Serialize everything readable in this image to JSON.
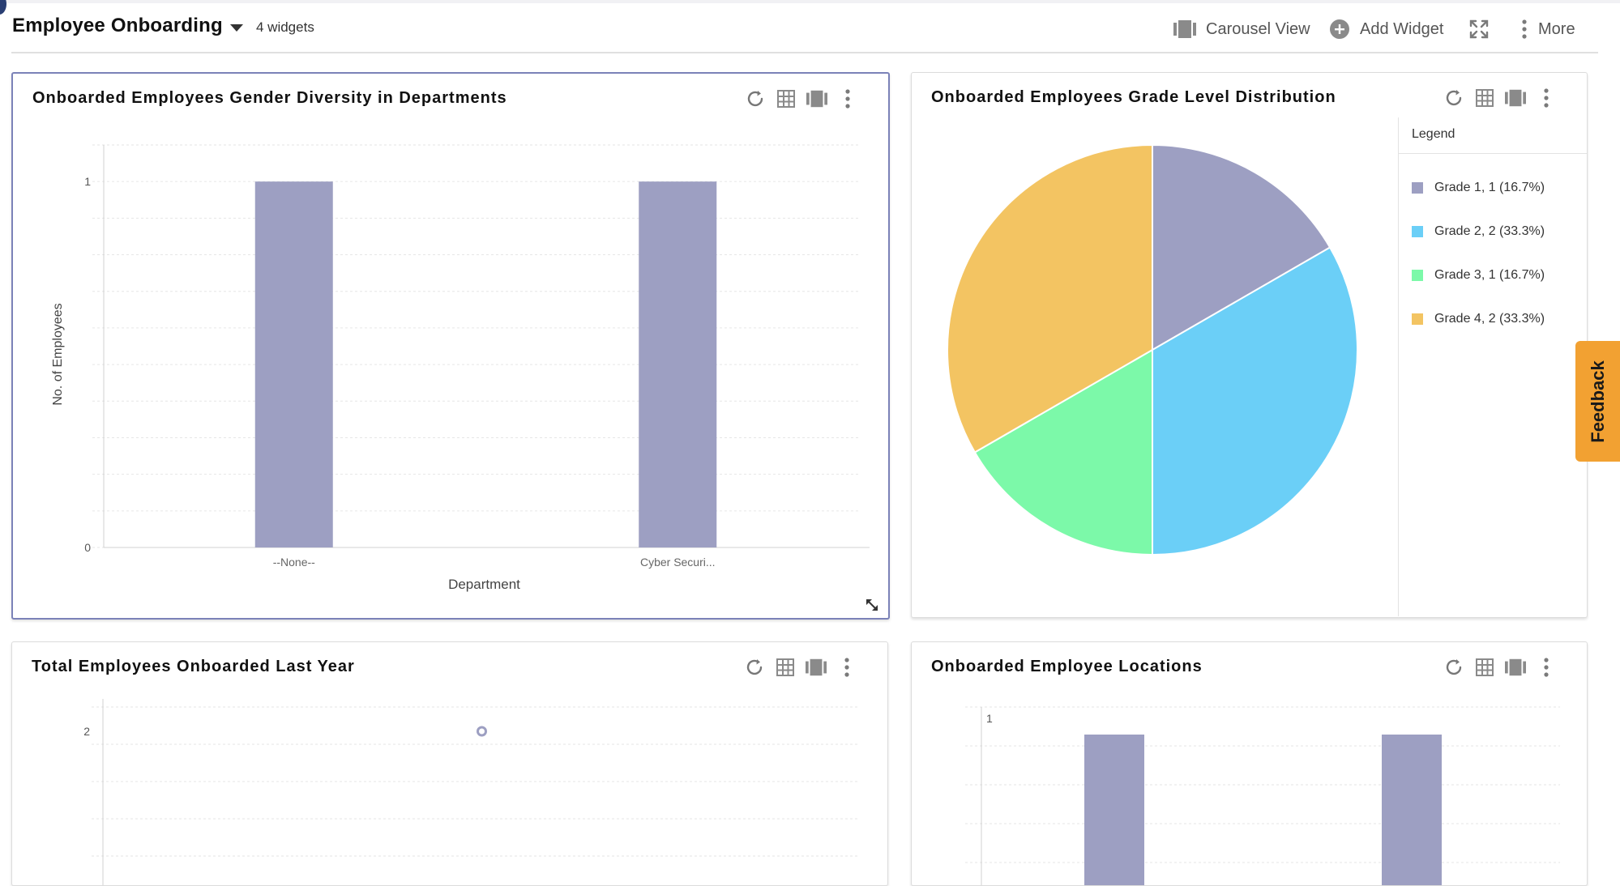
{
  "dashboard": {
    "title": "Employee Onboarding",
    "widget_count": "4 widgets",
    "actions": {
      "carousel_label": "Carousel View",
      "add_widget_label": "Add Widget",
      "more_label": "More"
    }
  },
  "colors": {
    "bar": "#9d9fc2",
    "grade1": "#9d9fc2",
    "grade2": "#6bcff7",
    "grade3": "#7cf9a9",
    "grade4": "#f3c462",
    "feedback": "#f2a132",
    "selected_border": "#7b82b8"
  },
  "widgets": {
    "gender": {
      "title": "Onboarded Employees Gender Diversity in Departments"
    },
    "grade": {
      "title": "Onboarded Employees Grade Level Distribution",
      "legend_title": "Legend"
    },
    "total": {
      "title": "Total Employees Onboarded Last Year"
    },
    "locations": {
      "title": "Onboarded Employee Locations"
    }
  },
  "icons": [
    "refresh-icon",
    "grid-icon",
    "carousel-icon",
    "kebab-icon",
    "add-circle-icon",
    "expand-icon",
    "resize-icon"
  ],
  "feedback": {
    "label": "Feedback"
  },
  "chart_data": [
    {
      "type": "bar",
      "title": "Onboarded Employees Gender Diversity in Departments",
      "categories": [
        "--None--",
        "Cyber Securi..."
      ],
      "values": [
        1,
        1
      ],
      "xlabel": "Department",
      "ylabel": "No. of Employees",
      "yticks": [
        "0",
        "1"
      ],
      "ylim": [
        0,
        1.1
      ],
      "grid": true
    },
    {
      "type": "pie",
      "title": "Onboarded Employees Grade Level Distribution",
      "labels": [
        "Grade 1, 1 (16.7%)",
        "Grade 2, 2 (33.3%)",
        "Grade 3, 1 (16.7%)",
        "Grade 4, 2 (33.3%)"
      ],
      "values": [
        1,
        2,
        1,
        2
      ],
      "legend": "right"
    },
    {
      "type": "scatter",
      "title": "Total Employees Onboarded Last Year",
      "values": [
        2
      ],
      "yticks": [
        "2"
      ],
      "grid": true
    },
    {
      "type": "bar",
      "title": "Onboarded Employee Locations",
      "values": [
        1,
        1
      ],
      "yticks": [
        "1"
      ],
      "grid": true
    }
  ]
}
